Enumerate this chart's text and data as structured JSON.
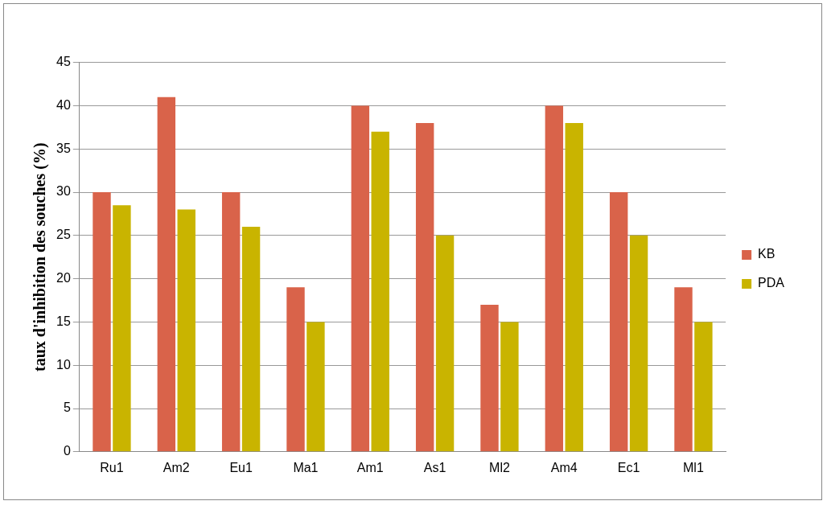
{
  "chart_data": {
    "type": "bar",
    "ylabel": "taux d'inhibition des souches (%)",
    "categories": [
      "Ru1",
      "Am2",
      "Eu1",
      "Ma1",
      "Am1",
      "As1",
      "Ml2",
      "Am4",
      "Ec1",
      "Ml1"
    ],
    "series": [
      {
        "name": "KB",
        "color": "#d9634a",
        "values": [
          30,
          41,
          30,
          19,
          40,
          38,
          17,
          40,
          30,
          19
        ]
      },
      {
        "name": "PDA",
        "color": "#c9b400",
        "values": [
          28.5,
          28,
          26,
          15,
          37,
          25,
          15,
          38,
          25,
          15
        ]
      }
    ],
    "ylim": [
      0,
      45
    ],
    "yticks": [
      0,
      5,
      10,
      15,
      20,
      25,
      30,
      35,
      40,
      45
    ],
    "grid": "y",
    "legend": "right"
  }
}
